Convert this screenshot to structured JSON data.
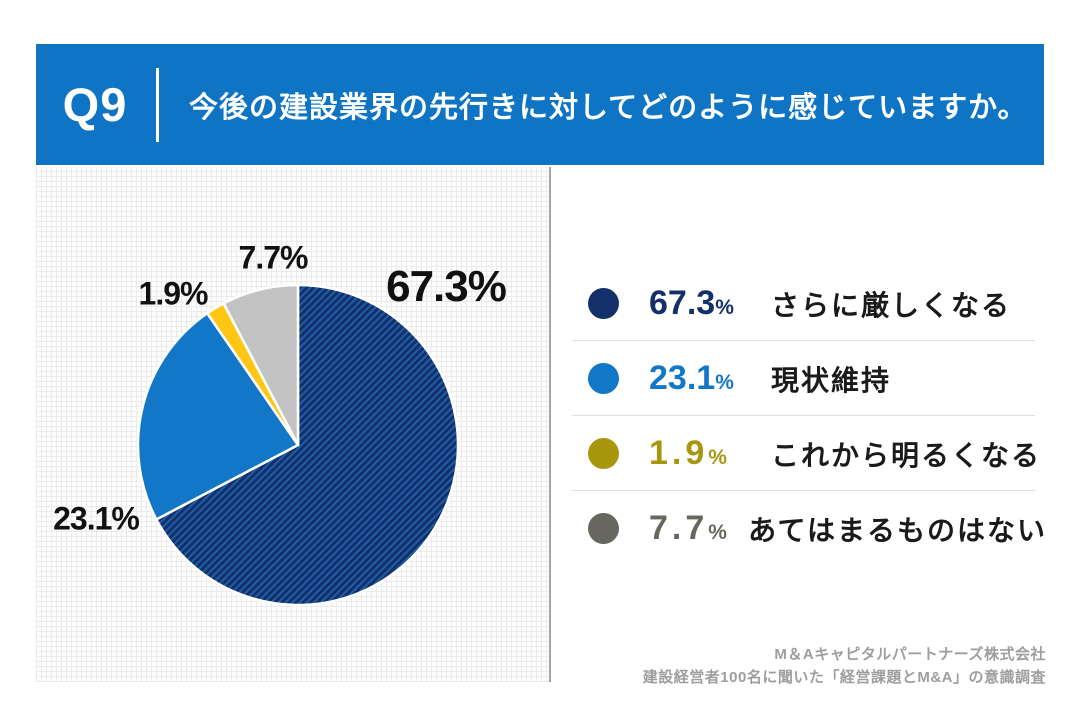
{
  "header": {
    "question_number": "Q9",
    "question_text": "今後の建設業界の先行きに対してどのように感じていますか。"
  },
  "chart_data": {
    "type": "pie",
    "title": "今後の建設業界の先行きに対してどのように感じていますか。",
    "categories": [
      "さらに厳しくなる",
      "現状維持",
      "これから明るくなる",
      "あてはまるものはない"
    ],
    "values": [
      67.3,
      23.1,
      1.9,
      7.7
    ],
    "unit": "%",
    "start_angle_deg": 0,
    "direction": "clockwise",
    "colors": [
      "#14306b",
      "#1377c8",
      "#ffc613",
      "#c3c3c3"
    ],
    "hatch": {
      "base": "#14306b",
      "stripe": "#1d5ea6",
      "note": "first slice has 45° diagonal hatch texture"
    },
    "slice_labels": [
      "67.3%",
      "23.1%",
      "1.9%",
      "7.7%"
    ],
    "legend_position": "right"
  },
  "legend": {
    "rows": [
      {
        "value": "67.3",
        "unit": "%",
        "label": "さらに厳しくなる",
        "color": "#14306b"
      },
      {
        "value": "23.1",
        "unit": "%",
        "label": "現状維持",
        "color": "#1377c8"
      },
      {
        "value": "1.9",
        "unit": "%",
        "label": "これから明るくなる",
        "color": "#a8960e"
      },
      {
        "value": "7.7",
        "unit": "%",
        "label": "あてはまるものはない",
        "color": "#67675f"
      }
    ]
  },
  "footer": {
    "company": "M＆Aキャピタルパートナーズ株式会社",
    "survey": "建設経営者100名に聞いた「経営課題とM&A」の意識調査"
  },
  "colors": {
    "header_background": "#0f74c4",
    "header_text": "#ffffff",
    "panel_grid_line": "#ebebeb",
    "panel_border": "#a6a6a6",
    "label_text": "#111111",
    "legend_divider": "#dedede",
    "footer_text": "#9e9e9e"
  }
}
